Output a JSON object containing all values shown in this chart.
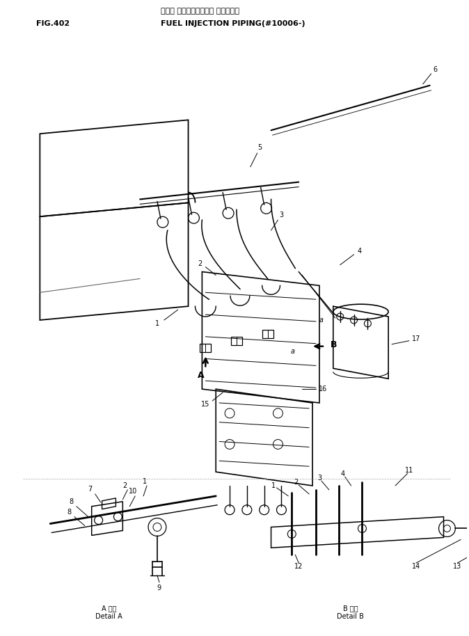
{
  "title_japanese": "フェル インジェクション パイピング",
  "title_english": "FUEL INJECTION PIPING(#10006-)",
  "fig_number": "FIG.402",
  "bg_color": "#ffffff",
  "line_color": "#000000",
  "text_color": "#000000",
  "detail_a_caption_jp": "A 詳細",
  "detail_a_caption_en": "Detail A",
  "detail_b_caption_jp": "B 詳細",
  "detail_b_caption_en": "Detail B"
}
